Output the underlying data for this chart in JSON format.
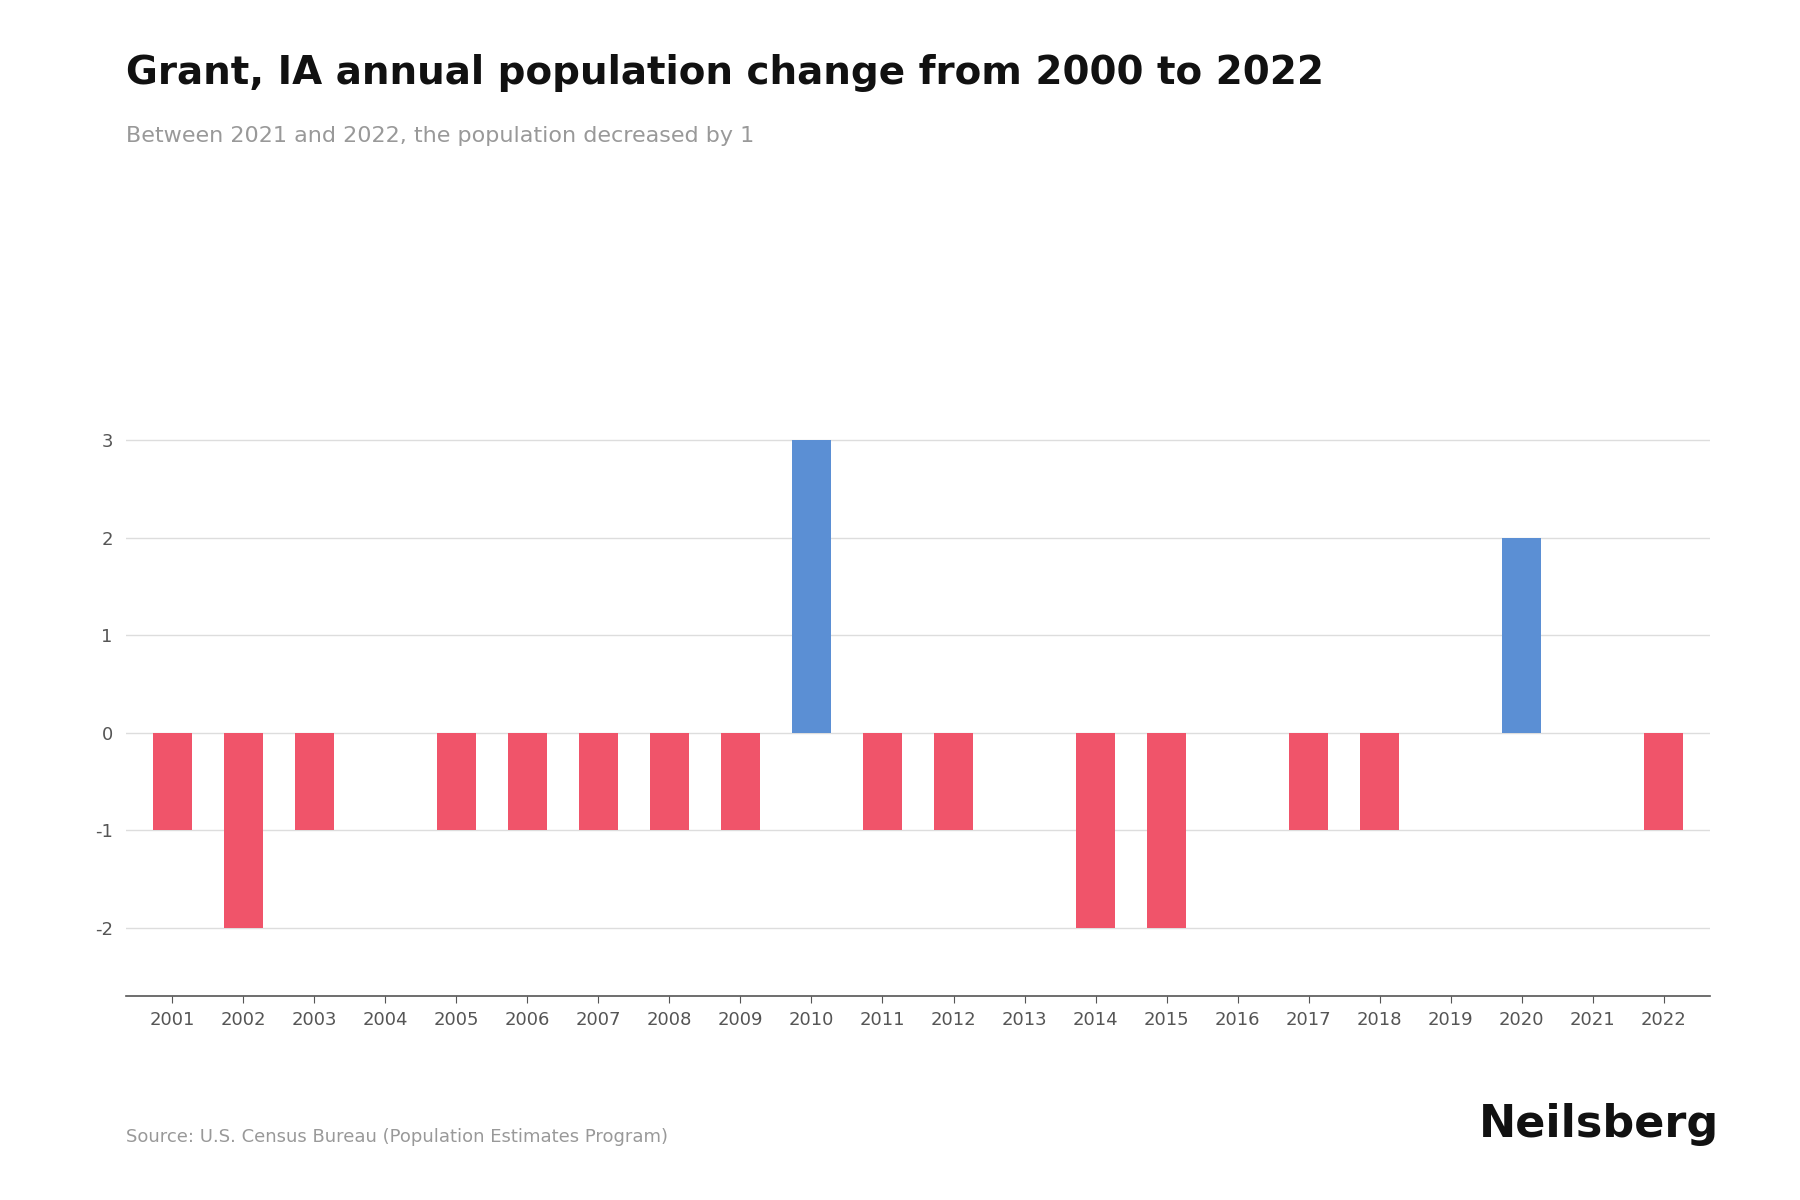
{
  "title": "Grant, IA annual population change from 2000 to 2022",
  "subtitle": "Between 2021 and 2022, the population decreased by 1",
  "source": "Source: U.S. Census Bureau (Population Estimates Program)",
  "branding": "Neilsberg",
  "years": [
    2001,
    2002,
    2003,
    2004,
    2005,
    2006,
    2007,
    2008,
    2009,
    2010,
    2011,
    2012,
    2013,
    2014,
    2015,
    2016,
    2017,
    2018,
    2019,
    2020,
    2021,
    2022
  ],
  "values": [
    -1,
    -2,
    -1,
    0,
    -1,
    -1,
    -1,
    -1,
    -1,
    3,
    -1,
    -1,
    0,
    -2,
    -2,
    0,
    -1,
    -1,
    0,
    2,
    0,
    -1
  ],
  "positive_color": "#5b8fd4",
  "negative_color": "#f0546a",
  "background_color": "#ffffff",
  "title_fontsize": 28,
  "subtitle_fontsize": 16,
  "source_fontsize": 13,
  "branding_fontsize": 32,
  "tick_fontsize": 13,
  "ylabel_values": [
    -2,
    -1,
    0,
    1,
    2,
    3
  ],
  "ylim": [
    -2.7,
    3.7
  ],
  "grid_color": "#dddddd",
  "axis_color": "#555555",
  "title_color": "#111111",
  "subtitle_color": "#999999",
  "source_color": "#999999",
  "bar_width": 0.55
}
